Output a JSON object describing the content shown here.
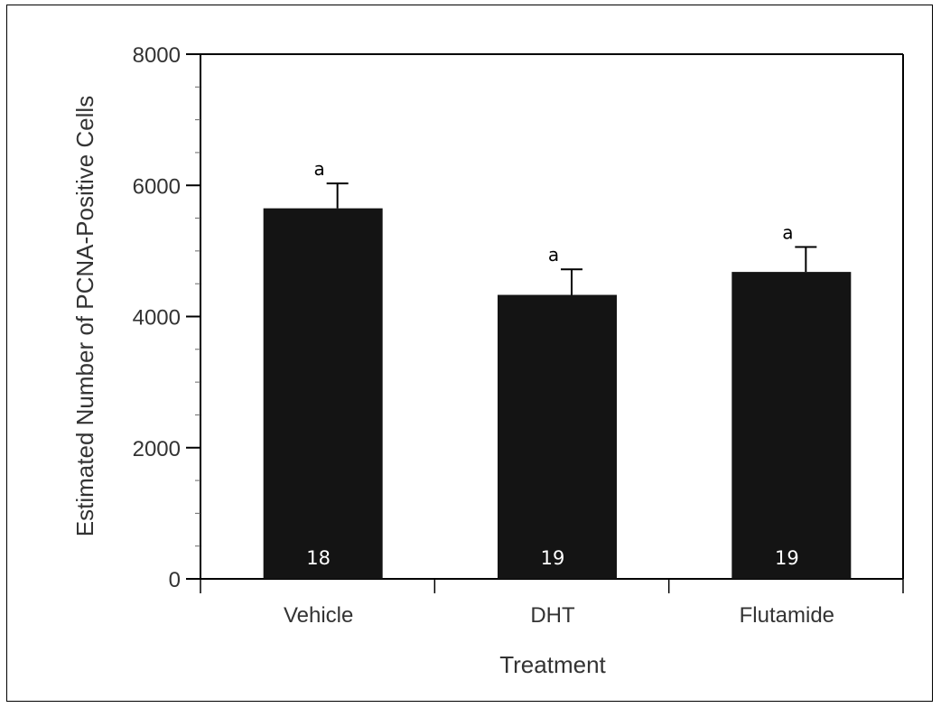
{
  "chart_data": {
    "type": "bar",
    "title": "",
    "xlabel": "Treatment",
    "ylabel": "Estimated Number of PCNA-Positive Cells",
    "ylim": [
      0,
      8000
    ],
    "yticks": [
      0,
      2000,
      4000,
      6000,
      8000
    ],
    "ytick_labels": [
      "0",
      "2000",
      "4000",
      "6000",
      "8000"
    ],
    "categories": [
      "Vehicle",
      "DHT",
      "Flutamide"
    ],
    "values": [
      5650,
      4330,
      4680
    ],
    "errors": [
      380,
      390,
      380
    ],
    "significance": [
      "a",
      "a",
      "a"
    ],
    "n_labels": [
      "18",
      "19",
      "19"
    ],
    "bar_color": "#141414",
    "grid": false,
    "legend": "none"
  }
}
